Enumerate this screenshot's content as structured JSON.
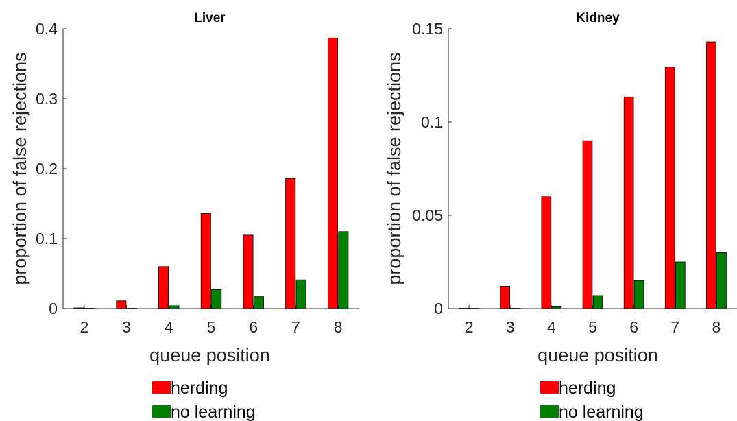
{
  "chart_data": [
    {
      "type": "bar",
      "title": "Liver",
      "xlabel": "queue position",
      "ylabel": "proportion of false rejections",
      "categories": [
        "2",
        "3",
        "4",
        "5",
        "6",
        "7",
        "8"
      ],
      "ylim": [
        0,
        0.4
      ],
      "yticks": [
        "0",
        "0.1",
        "0.2",
        "0.3",
        "0.4"
      ],
      "ytick_values": [
        0,
        0.1,
        0.2,
        0.3,
        0.4
      ],
      "series": [
        {
          "name": "herding",
          "color": "#ff0000",
          "values": [
            0.001,
            0.011,
            0.06,
            0.136,
            0.105,
            0.186,
            0.387
          ]
        },
        {
          "name": "no learning",
          "color": "#008000",
          "values": [
            0.0,
            0.0005,
            0.004,
            0.027,
            0.017,
            0.041,
            0.11
          ]
        }
      ],
      "legend": "bottom"
    },
    {
      "type": "bar",
      "title": "Kidney",
      "xlabel": "queue position",
      "ylabel": "proportion of false rejections",
      "categories": [
        "2",
        "3",
        "4",
        "5",
        "6",
        "7",
        "8"
      ],
      "ylim": [
        0,
        0.15
      ],
      "yticks": [
        "0",
        "0.05",
        "0.1",
        "0.15"
      ],
      "ytick_values": [
        0,
        0.05,
        0.1,
        0.15
      ],
      "series": [
        {
          "name": "herding",
          "color": "#ff0000",
          "values": [
            0.0002,
            0.012,
            0.06,
            0.09,
            0.1135,
            0.1295,
            0.143
          ]
        },
        {
          "name": "no learning",
          "color": "#008000",
          "values": [
            0.0,
            0.0001,
            0.001,
            0.007,
            0.015,
            0.025,
            0.03
          ]
        }
      ],
      "legend": "bottom"
    }
  ]
}
